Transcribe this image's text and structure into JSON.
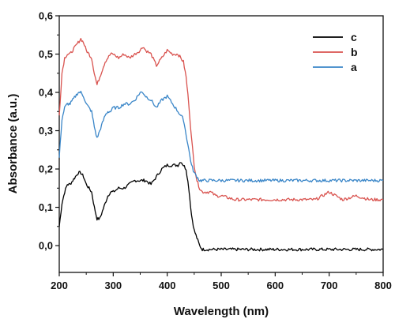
{
  "chart_data": {
    "type": "line",
    "title": "",
    "xlabel": "Wavelength (nm)",
    "ylabel": "Absorbance (a.u.)",
    "xlim": [
      200,
      800
    ],
    "ylim": [
      -0.07,
      0.6
    ],
    "xticks": [
      200,
      300,
      400,
      500,
      600,
      700,
      800
    ],
    "xtick_labels": [
      "200",
      "300",
      "400",
      "500",
      "600",
      "700",
      "800"
    ],
    "yticks": [
      0.0,
      0.1,
      0.2,
      0.3,
      0.4,
      0.5,
      0.6
    ],
    "ytick_labels": [
      "0,0",
      "0,1",
      "0,2",
      "0,3",
      "0,4",
      "0,5",
      "0,6"
    ],
    "grid": false,
    "legend_position": "top-right",
    "x": [
      200,
      205,
      210,
      215,
      220,
      225,
      230,
      235,
      240,
      245,
      250,
      255,
      260,
      265,
      270,
      275,
      280,
      285,
      290,
      295,
      300,
      310,
      320,
      330,
      340,
      350,
      355,
      360,
      370,
      380,
      390,
      400,
      410,
      420,
      425,
      430,
      435,
      440,
      445,
      450,
      455,
      460,
      465,
      470,
      480,
      490,
      500,
      525,
      550,
      575,
      600,
      625,
      650,
      675,
      700,
      725,
      750,
      775,
      800
    ],
    "series": [
      {
        "name": "c",
        "color": "#000000",
        "values": [
          0.05,
          0.11,
          0.14,
          0.16,
          0.16,
          0.17,
          0.18,
          0.19,
          0.19,
          0.18,
          0.16,
          0.15,
          0.14,
          0.1,
          0.07,
          0.07,
          0.09,
          0.11,
          0.13,
          0.14,
          0.14,
          0.15,
          0.15,
          0.16,
          0.17,
          0.17,
          0.17,
          0.17,
          0.16,
          0.18,
          0.2,
          0.21,
          0.21,
          0.21,
          0.22,
          0.21,
          0.2,
          0.15,
          0.08,
          0.04,
          0.02,
          0.0,
          -0.01,
          -0.01,
          -0.01,
          -0.01,
          -0.01,
          -0.01,
          -0.01,
          -0.01,
          -0.01,
          -0.01,
          -0.01,
          -0.01,
          -0.01,
          -0.01,
          -0.01,
          -0.01,
          -0.01
        ]
      },
      {
        "name": "b",
        "color": "#d9534f",
        "values": [
          0.34,
          0.45,
          0.49,
          0.5,
          0.5,
          0.51,
          0.52,
          0.53,
          0.54,
          0.53,
          0.51,
          0.5,
          0.49,
          0.45,
          0.42,
          0.44,
          0.46,
          0.48,
          0.49,
          0.5,
          0.5,
          0.49,
          0.5,
          0.49,
          0.5,
          0.51,
          0.52,
          0.51,
          0.5,
          0.47,
          0.49,
          0.51,
          0.5,
          0.5,
          0.49,
          0.48,
          0.44,
          0.37,
          0.28,
          0.21,
          0.17,
          0.15,
          0.14,
          0.14,
          0.14,
          0.13,
          0.13,
          0.12,
          0.12,
          0.12,
          0.12,
          0.12,
          0.12,
          0.12,
          0.14,
          0.12,
          0.13,
          0.12,
          0.12
        ]
      },
      {
        "name": "a",
        "color": "#3a86c8",
        "values": [
          0.23,
          0.33,
          0.36,
          0.37,
          0.37,
          0.38,
          0.39,
          0.4,
          0.4,
          0.39,
          0.37,
          0.36,
          0.35,
          0.31,
          0.28,
          0.3,
          0.32,
          0.34,
          0.35,
          0.35,
          0.36,
          0.36,
          0.37,
          0.37,
          0.38,
          0.4,
          0.4,
          0.39,
          0.38,
          0.36,
          0.38,
          0.39,
          0.37,
          0.35,
          0.34,
          0.33,
          0.29,
          0.25,
          0.21,
          0.19,
          0.18,
          0.17,
          0.17,
          0.17,
          0.17,
          0.17,
          0.17,
          0.17,
          0.17,
          0.17,
          0.17,
          0.17,
          0.17,
          0.17,
          0.17,
          0.17,
          0.17,
          0.17,
          0.17
        ]
      }
    ]
  }
}
